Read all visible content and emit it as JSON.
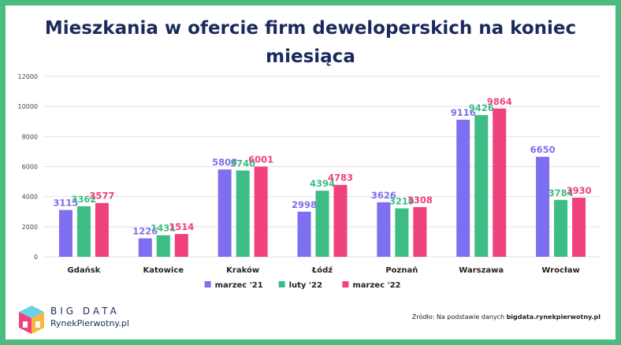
{
  "title_line1": "Mieszkania w ofercie firm deweloperskich na koniec",
  "title_line2": "miesiąca",
  "source_prefix": "Źródło: Na podstawie danych",
  "source_site": "bigdata.rynekpierwotny.pl",
  "logo_line1": "BIG DATA",
  "logo_line2": "RynekPierwotny.pl",
  "colors": {
    "accent_border": "#4cbb7f",
    "title": "#1b2a5c"
  },
  "chart_data": {
    "type": "bar",
    "categories": [
      "Gdańsk",
      "Katowice",
      "Kraków",
      "Łódź",
      "Poznań",
      "Warszawa",
      "Wrocław"
    ],
    "series": [
      {
        "name": "marzec '21",
        "color": "#7e6ef0",
        "values": [
          3115,
          1226,
          5808,
          2998,
          3626,
          9116,
          6650
        ]
      },
      {
        "name": "luty '22",
        "color": "#3dbd84",
        "values": [
          3362,
          1431,
          5740,
          4394,
          3219,
          9426,
          3784
        ]
      },
      {
        "name": "marzec '22",
        "color": "#f0417f",
        "values": [
          3577,
          1514,
          6001,
          4783,
          3308,
          9864,
          3930
        ]
      }
    ],
    "yticks": [
      0,
      2000,
      4000,
      6000,
      8000,
      10000,
      12000
    ],
    "ylim": [
      0,
      12000
    ],
    "grid": true,
    "legend": "bottom-center",
    "data_labels": true
  }
}
